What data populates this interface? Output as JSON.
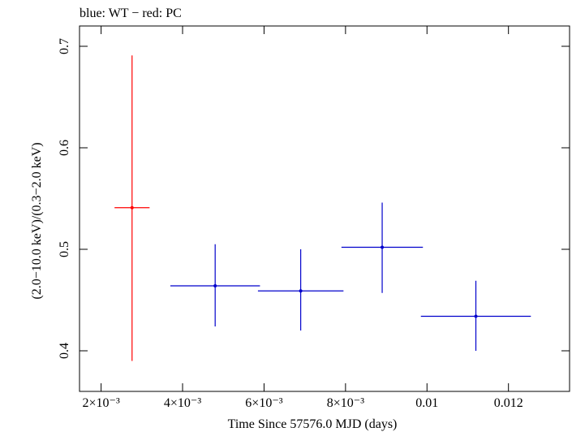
{
  "chart_data": {
    "type": "scatter",
    "title": "blue: WT − red: PC",
    "xlabel": "Time Since 57576.0 MJD (days)",
    "ylabel": "(2.0−10.0 keV)/(0.3−2.0 keV)",
    "xlim": [
      0.00147,
      0.0135
    ],
    "ylim": [
      0.36,
      0.72
    ],
    "x_ticks": [
      {
        "value": 0.002,
        "label": "2×10⁻³"
      },
      {
        "value": 0.004,
        "label": "4×10⁻³"
      },
      {
        "value": 0.006,
        "label": "6×10⁻³"
      },
      {
        "value": 0.008,
        "label": "8×10⁻³"
      },
      {
        "value": 0.01,
        "label": "0.01"
      },
      {
        "value": 0.012,
        "label": "0.012"
      }
    ],
    "y_ticks": [
      {
        "value": 0.4,
        "label": "0.4"
      },
      {
        "value": 0.5,
        "label": "0.5"
      },
      {
        "value": 0.6,
        "label": "0.6"
      },
      {
        "value": 0.7,
        "label": "0.7"
      }
    ],
    "grid": false,
    "series": [
      {
        "name": "PC",
        "color": "#ff0000",
        "points": [
          {
            "x": 0.00276,
            "xlo": 0.00233,
            "xhi": 0.00319,
            "y": 0.541,
            "ylo": 0.39,
            "yhi": 0.691
          }
        ]
      },
      {
        "name": "WT",
        "color": "#0000cc",
        "points": [
          {
            "x": 0.0048,
            "xlo": 0.0037,
            "xhi": 0.0059,
            "y": 0.464,
            "ylo": 0.424,
            "yhi": 0.505
          },
          {
            "x": 0.0069,
            "xlo": 0.00585,
            "xhi": 0.00795,
            "y": 0.459,
            "ylo": 0.42,
            "yhi": 0.5
          },
          {
            "x": 0.0089,
            "xlo": 0.0079,
            "xhi": 0.0099,
            "y": 0.502,
            "ylo": 0.457,
            "yhi": 0.546
          },
          {
            "x": 0.0112,
            "xlo": 0.00985,
            "xhi": 0.01255,
            "y": 0.434,
            "ylo": 0.4,
            "yhi": 0.469
          }
        ]
      }
    ]
  }
}
